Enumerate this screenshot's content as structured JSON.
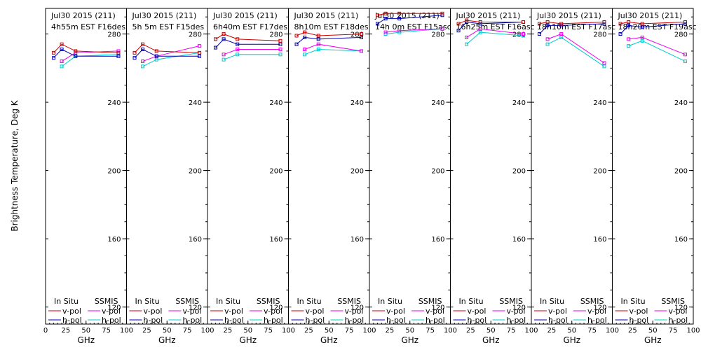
{
  "chart_data": {
    "type": "line",
    "y_axis_label": "Brightness Temperature, Deg K",
    "x_axis_label": "GHz",
    "y_ticks": [
      "120",
      "160",
      "200",
      "240",
      "280"
    ],
    "x_ticks": [
      "0",
      "25",
      "50",
      "75",
      "100"
    ],
    "ylim": [
      110,
      295
    ],
    "xlim": [
      0,
      100
    ],
    "legend": {
      "in_situ": "In Situ",
      "ssmis": "SSMIS",
      "v_pol": "v-pol",
      "h_pol": "h-pol"
    },
    "colors": {
      "in_situ_v": "#cc0000",
      "in_situ_h": "#0000aa",
      "ssmis_v": "#ee00ee",
      "ssmis_h": "#00cccc"
    },
    "panels": [
      {
        "date": "Jul30 2015 (211)",
        "time": "4h55m  EST F16des",
        "in_situ_v": [
          [
            10,
            269
          ],
          [
            20,
            274
          ],
          [
            37,
            270
          ],
          [
            90,
            269
          ]
        ],
        "in_situ_h": [
          [
            10,
            266
          ],
          [
            20,
            271
          ],
          [
            37,
            267
          ],
          [
            90,
            267
          ]
        ],
        "ssmis_v": [
          [
            20,
            264
          ],
          [
            37,
            269
          ],
          [
            90,
            270
          ]
        ],
        "ssmis_h": [
          [
            20,
            261
          ],
          [
            37,
            267
          ],
          [
            90,
            268
          ]
        ]
      },
      {
        "date": "Jul30 2015 (211)",
        "time": "5h 5m  EST F15des",
        "in_situ_v": [
          [
            10,
            269
          ],
          [
            20,
            274
          ],
          [
            37,
            270
          ],
          [
            90,
            269
          ]
        ],
        "in_situ_h": [
          [
            10,
            266
          ],
          [
            20,
            271
          ],
          [
            37,
            267
          ],
          [
            90,
            267
          ]
        ],
        "ssmis_v": [
          [
            20,
            264
          ],
          [
            37,
            267
          ],
          [
            90,
            273
          ]
        ],
        "ssmis_h": [
          [
            20,
            261
          ],
          [
            37,
            265
          ],
          [
            90,
            269
          ]
        ]
      },
      {
        "date": "Jul30 2015 (211)",
        "time": "6h40m  EST F17des",
        "in_situ_v": [
          [
            10,
            277
          ],
          [
            20,
            280
          ],
          [
            37,
            277
          ],
          [
            90,
            276
          ]
        ],
        "in_situ_h": [
          [
            10,
            272
          ],
          [
            20,
            277
          ],
          [
            37,
            274
          ],
          [
            90,
            274
          ]
        ],
        "ssmis_v": [
          [
            20,
            268
          ],
          [
            37,
            271
          ],
          [
            90,
            271
          ]
        ],
        "ssmis_h": [
          [
            20,
            265
          ],
          [
            37,
            268
          ],
          [
            90,
            268
          ]
        ]
      },
      {
        "date": "Jul30 2015 (211)",
        "time": "8h10m  EST F18des",
        "in_situ_v": [
          [
            10,
            279
          ],
          [
            20,
            281
          ],
          [
            37,
            279
          ],
          [
            90,
            280
          ]
        ],
        "in_situ_h": [
          [
            10,
            274
          ],
          [
            20,
            278
          ],
          [
            37,
            277
          ],
          [
            90,
            278
          ]
        ],
        "ssmis_v": [
          [
            20,
            271
          ],
          [
            37,
            274
          ],
          [
            90,
            270
          ]
        ],
        "ssmis_h": [
          [
            20,
            268
          ],
          [
            37,
            271
          ],
          [
            90,
            270
          ]
        ]
      },
      {
        "date": "Jul30 2015 (211)",
        "time": "14h 0m  EST F15asc",
        "in_situ_v": [
          [
            10,
            291
          ],
          [
            20,
            292
          ],
          [
            37,
            292
          ],
          [
            90,
            292
          ]
        ],
        "in_situ_h": [
          [
            10,
            286
          ],
          [
            20,
            289
          ],
          [
            37,
            289
          ],
          [
            90,
            291
          ]
        ],
        "ssmis_v": [
          [
            20,
            281
          ],
          [
            37,
            282
          ],
          [
            90,
            283
          ]
        ],
        "ssmis_h": [
          [
            20,
            280
          ],
          [
            37,
            281
          ],
          [
            90,
            283
          ]
        ]
      },
      {
        "date": "Jul30 2015 (211)",
        "time": "16h25m  EST F16asc",
        "in_situ_v": [
          [
            10,
            286
          ],
          [
            20,
            288
          ],
          [
            37,
            287
          ],
          [
            90,
            287
          ]
        ],
        "in_situ_h": [
          [
            10,
            282
          ],
          [
            20,
            287
          ],
          [
            37,
            286
          ],
          [
            90,
            287
          ]
        ],
        "ssmis_v": [
          [
            20,
            278
          ],
          [
            37,
            283
          ],
          [
            90,
            280
          ]
        ],
        "ssmis_h": [
          [
            20,
            274
          ],
          [
            37,
            281
          ],
          [
            90,
            279
          ]
        ]
      },
      {
        "date": "Jul30 2015 (211)",
        "time": "18h10m  EST F17asc",
        "in_situ_v": [
          [
            10,
            286
          ],
          [
            20,
            287
          ],
          [
            37,
            286
          ],
          [
            90,
            287
          ]
        ],
        "in_situ_h": [
          [
            10,
            280
          ],
          [
            20,
            285
          ],
          [
            37,
            285
          ],
          [
            90,
            286
          ]
        ],
        "ssmis_v": [
          [
            20,
            277
          ],
          [
            37,
            280
          ],
          [
            90,
            263
          ]
        ],
        "ssmis_h": [
          [
            20,
            274
          ],
          [
            37,
            278
          ],
          [
            90,
            261
          ]
        ]
      },
      {
        "date": "Jul30 2015 (211)",
        "time": "18h20m  EST F19asc",
        "in_situ_v": [
          [
            10,
            286
          ],
          [
            20,
            287
          ],
          [
            37,
            286
          ],
          [
            90,
            287
          ]
        ],
        "in_situ_h": [
          [
            10,
            280
          ],
          [
            20,
            285
          ],
          [
            37,
            284
          ],
          [
            90,
            286
          ]
        ],
        "ssmis_v": [
          [
            20,
            277
          ],
          [
            37,
            278
          ],
          [
            90,
            268
          ]
        ],
        "ssmis_h": [
          [
            20,
            273
          ],
          [
            37,
            276
          ],
          [
            90,
            264
          ]
        ]
      }
    ]
  }
}
